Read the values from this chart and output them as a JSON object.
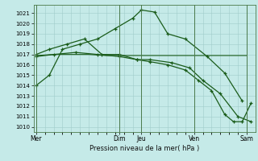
{
  "xlabel": "Pression niveau de la mer( hPa )",
  "ylim": [
    1009.5,
    1021.8
  ],
  "yticks": [
    1010,
    1011,
    1012,
    1013,
    1014,
    1015,
    1016,
    1017,
    1018,
    1019,
    1020,
    1021
  ],
  "background_color": "#c5eae8",
  "grid_color": "#a0ccca",
  "line_color": "#1a5c1a",
  "day_labels": [
    "Mer",
    "Dim",
    "Jeu",
    "Ven",
    "Sam"
  ],
  "day_positions": [
    0,
    9.5,
    12,
    18,
    24
  ],
  "xlim": [
    -0.3,
    25.0
  ],
  "series1_x": [
    0,
    1.5,
    3.0,
    5.0,
    7.0,
    9.0,
    11.0,
    12.0,
    13.5,
    15.0,
    17.0,
    19.5,
    21.5,
    23.5
  ],
  "series1_y": [
    1014.0,
    1015.0,
    1017.5,
    1018.0,
    1018.5,
    1019.5,
    1020.5,
    1021.3,
    1021.1,
    1019.0,
    1018.5,
    1016.8,
    1015.2,
    1012.5
  ],
  "series2_x": [
    0,
    1.5,
    3.5,
    5.5,
    7.5,
    9.5,
    11.5,
    13.0,
    15.5,
    17.5,
    19.0,
    21.0,
    23.0,
    24.5
  ],
  "series2_y": [
    1017.0,
    1017.5,
    1018.0,
    1018.5,
    1017.0,
    1017.0,
    1016.5,
    1016.5,
    1016.2,
    1015.7,
    1014.5,
    1013.2,
    1011.0,
    1010.5
  ],
  "series3_x": [
    0,
    2.0,
    4.0,
    6.0,
    8.0,
    10.0,
    12.0,
    14.0,
    16.0,
    18.0,
    20.0,
    22.0,
    24.0
  ],
  "series3_y": [
    1016.9,
    1017.0,
    1017.0,
    1017.0,
    1016.9,
    1016.9,
    1016.9,
    1016.9,
    1016.9,
    1016.9,
    1016.9,
    1016.9,
    1016.9
  ],
  "series4_x": [
    0,
    2.0,
    4.5,
    7.0,
    9.5,
    11.5,
    13.0,
    15.0,
    17.0,
    18.5,
    20.0,
    21.5,
    22.5,
    23.5,
    24.5
  ],
  "series4_y": [
    1016.8,
    1017.0,
    1017.2,
    1017.0,
    1016.8,
    1016.5,
    1016.3,
    1016.0,
    1015.5,
    1014.5,
    1013.5,
    1011.2,
    1010.5,
    1010.5,
    1012.3
  ]
}
